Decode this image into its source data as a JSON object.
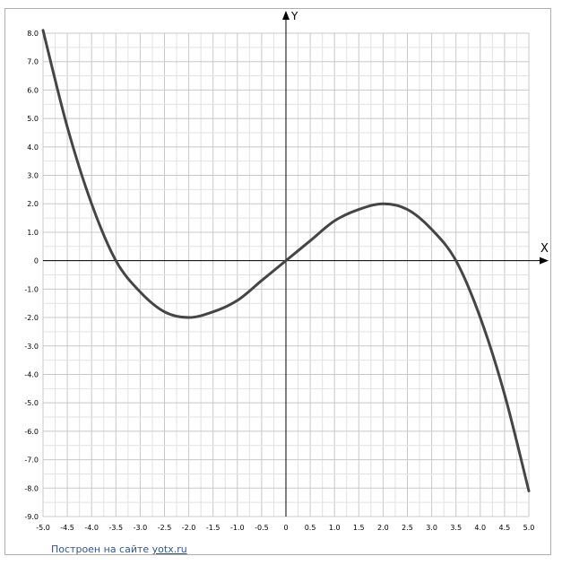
{
  "chart_data": {
    "type": "line",
    "title": "",
    "xlabel": "X",
    "ylabel": "Y",
    "xlim": [
      -5.0,
      5.0
    ],
    "ylim": [
      -9.0,
      8.0
    ],
    "x_ticks": [
      "-5.0",
      "-4.5",
      "-4.0",
      "-3.5",
      "-3.0",
      "-2.5",
      "-2.0",
      "-1.5",
      "-1.0",
      "-0.5",
      "0",
      "0.5",
      "1.0",
      "1.5",
      "2.0",
      "2.5",
      "3.0",
      "3.5",
      "4.0",
      "4.5",
      "5.0"
    ],
    "y_ticks": [
      "8.0",
      "7.0",
      "6.0",
      "5.0",
      "4.0",
      "3.0",
      "2.0",
      "1.0",
      "0",
      "-1.0",
      "-2.0",
      "-3.0",
      "-4.0",
      "-5.0",
      "-6.0",
      "-7.0",
      "-8.0",
      "-9.0"
    ],
    "grid": true,
    "series": [
      {
        "x": [
          -5.0,
          -4.5,
          -4.0,
          -3.5,
          -3.0,
          -2.5,
          -2.0,
          -1.5,
          -1.0,
          -0.5,
          0,
          0.5,
          1.0,
          1.5,
          2.0,
          2.5,
          3.0,
          3.5,
          4.0,
          4.5,
          5.0
        ],
        "y": [
          8.1,
          4.7,
          2.0,
          0.0,
          -1.1,
          -1.8,
          -2.0,
          -1.8,
          -1.4,
          -0.7,
          0.0,
          0.7,
          1.4,
          1.8,
          2.0,
          1.8,
          1.1,
          0.0,
          -2.0,
          -4.7,
          -8.1
        ],
        "color": "#454545"
      }
    ]
  },
  "footer": {
    "credit_text": "Построен на сайте ",
    "credit_link": "yotx.ru"
  }
}
